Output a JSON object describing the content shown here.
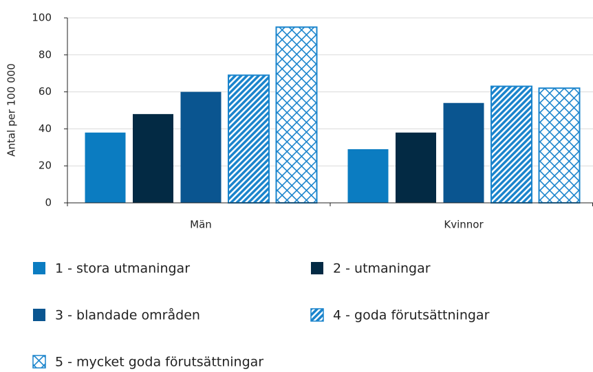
{
  "chart_data": {
    "type": "bar",
    "y_label": "Antal per 100 000",
    "categories": [
      "Män",
      "Kvinnor"
    ],
    "series": [
      {
        "name": "1 - stora utmaningar",
        "color": "#0b7cc1",
        "pattern": "solid",
        "values": [
          38,
          29
        ]
      },
      {
        "name": "2 - utmaningar",
        "color": "#032a44",
        "pattern": "solid",
        "values": [
          48,
          38
        ]
      },
      {
        "name": "3 - blandade områden",
        "color": "#0a5590",
        "pattern": "solid",
        "values": [
          60,
          54
        ]
      },
      {
        "name": "4 - goda förutsättningar",
        "color": "#1a84cc",
        "pattern": "diagonal",
        "values": [
          69,
          63
        ]
      },
      {
        "name": "5 - mycket goda förutsättningar",
        "color": "#1a84cc",
        "pattern": "crosshatch",
        "values": [
          95,
          62
        ]
      }
    ],
    "ylim": [
      0,
      100
    ],
    "yticks": [
      0,
      20,
      40,
      60,
      80,
      100
    ],
    "grid": true
  }
}
